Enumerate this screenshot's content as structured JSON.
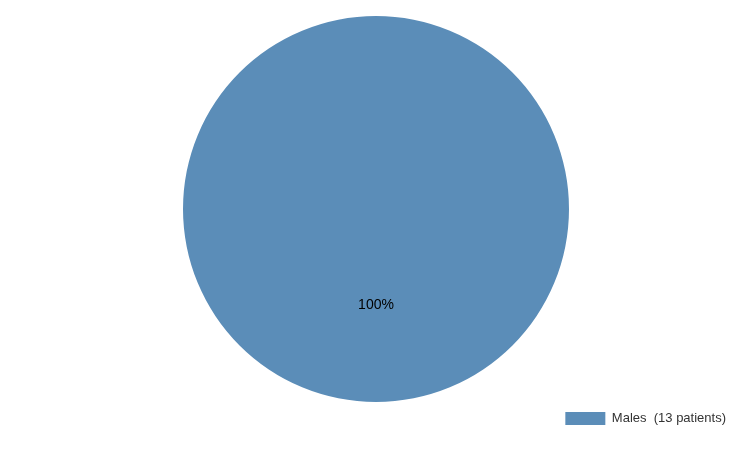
{
  "chart_data": {
    "type": "pie",
    "categories": [
      "Males  (13 patients)"
    ],
    "values": [
      100
    ],
    "value_labels": [
      "100%"
    ],
    "data_labels": true,
    "colors": [
      "#5b8db8"
    ],
    "legend": "lower right"
  }
}
